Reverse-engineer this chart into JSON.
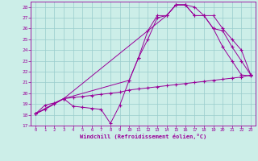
{
  "xlabel": "Windchill (Refroidissement éolien,°C)",
  "bg_color": "#cceee8",
  "grid_color": "#99cccc",
  "line_color": "#990099",
  "xlim": [
    -0.5,
    23.5
  ],
  "ylim": [
    17,
    28.5
  ],
  "xticks": [
    0,
    1,
    2,
    3,
    4,
    5,
    6,
    7,
    8,
    9,
    10,
    11,
    12,
    13,
    14,
    15,
    16,
    17,
    18,
    19,
    20,
    21,
    22,
    23
  ],
  "yticks": [
    17,
    18,
    19,
    20,
    21,
    22,
    23,
    24,
    25,
    26,
    27,
    28
  ],
  "line1_x": [
    0,
    1,
    2,
    3,
    4,
    5,
    6,
    7,
    8,
    9,
    10,
    11,
    12,
    13,
    14,
    15,
    16,
    17,
    18,
    19,
    20,
    21,
    22,
    23
  ],
  "line1_y": [
    18.1,
    18.9,
    19.1,
    19.5,
    18.8,
    18.7,
    18.6,
    18.5,
    17.2,
    18.9,
    21.2,
    23.3,
    25.8,
    27.2,
    27.2,
    28.2,
    28.2,
    28.0,
    27.2,
    26.0,
    24.3,
    23.0,
    21.7,
    21.6
  ],
  "line2_x": [
    0,
    3,
    10,
    11,
    12,
    13,
    14,
    15,
    16,
    17,
    18,
    19,
    20,
    21,
    22,
    23
  ],
  "line2_y": [
    18.1,
    19.5,
    21.2,
    23.3,
    25.0,
    27.0,
    27.2,
    28.2,
    28.2,
    27.2,
    27.2,
    27.2,
    26.0,
    25.0,
    24.0,
    21.7
  ],
  "line3_x": [
    0,
    3,
    14,
    15,
    16,
    17,
    18,
    19,
    20,
    21,
    22,
    23
  ],
  "line3_y": [
    18.1,
    19.5,
    27.2,
    28.2,
    28.2,
    27.2,
    27.2,
    26.0,
    25.8,
    24.3,
    23.0,
    21.7
  ],
  "line4_x": [
    0,
    1,
    2,
    3,
    4,
    5,
    6,
    7,
    8,
    9,
    10,
    11,
    12,
    13,
    14,
    15,
    16,
    17,
    18,
    19,
    20,
    21,
    22,
    23
  ],
  "line4_y": [
    18.1,
    18.5,
    19.0,
    19.5,
    19.6,
    19.7,
    19.8,
    19.9,
    20.0,
    20.1,
    20.3,
    20.4,
    20.5,
    20.6,
    20.7,
    20.8,
    20.9,
    21.0,
    21.1,
    21.2,
    21.3,
    21.4,
    21.5,
    21.7
  ]
}
